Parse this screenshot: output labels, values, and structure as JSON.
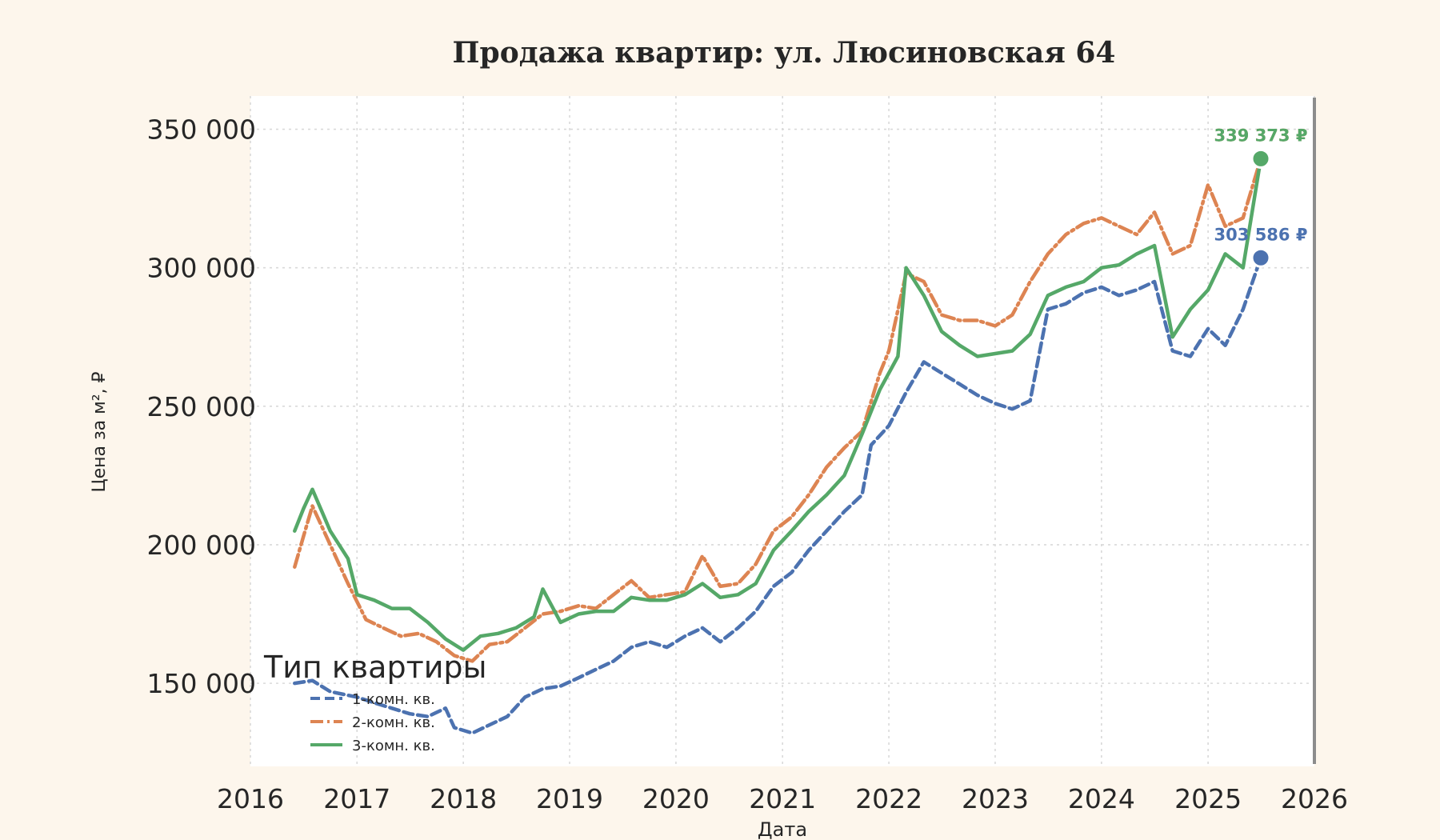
{
  "chart_data": {
    "type": "line",
    "title": "Продажа квартир: ул. Люсиновская 64",
    "xlabel": "Дата",
    "ylabel": "Цена за м², ₽",
    "xlim": [
      "2016-01-01",
      "2026-01-01"
    ],
    "ylim": [
      120000,
      362000
    ],
    "x_ticks": [
      "2016",
      "2017",
      "2018",
      "2019",
      "2020",
      "2021",
      "2022",
      "2023",
      "2024",
      "2025",
      "2026"
    ],
    "y_ticks": [
      150000,
      200000,
      250000,
      300000,
      350000
    ],
    "y_tick_labels": [
      "150 000",
      "200 000",
      "250 000",
      "300 000",
      "350 000"
    ],
    "grid": true,
    "legend": {
      "title": "Тип квартиры",
      "position": "bottom-left"
    },
    "series": [
      {
        "name": "1-комн. кв.",
        "color": "#4c72b0",
        "style": "dashed",
        "end_label": "303 586 ₽",
        "points": [
          [
            "2016-06-01",
            150000
          ],
          [
            "2016-08-01",
            151000
          ],
          [
            "2016-10-01",
            147000
          ],
          [
            "2017-01-01",
            145000
          ],
          [
            "2017-03-01",
            143000
          ],
          [
            "2017-05-01",
            141000
          ],
          [
            "2017-07-01",
            139000
          ],
          [
            "2017-09-01",
            138000
          ],
          [
            "2017-11-01",
            141000
          ],
          [
            "2017-12-01",
            134000
          ],
          [
            "2018-02-01",
            132000
          ],
          [
            "2018-04-01",
            135000
          ],
          [
            "2018-06-01",
            138000
          ],
          [
            "2018-08-01",
            145000
          ],
          [
            "2018-10-01",
            148000
          ],
          [
            "2018-12-01",
            149000
          ],
          [
            "2019-02-01",
            152000
          ],
          [
            "2019-04-01",
            155000
          ],
          [
            "2019-06-01",
            158000
          ],
          [
            "2019-08-01",
            163000
          ],
          [
            "2019-10-01",
            165000
          ],
          [
            "2019-12-01",
            163000
          ],
          [
            "2020-02-01",
            167000
          ],
          [
            "2020-04-01",
            170000
          ],
          [
            "2020-06-01",
            165000
          ],
          [
            "2020-08-01",
            170000
          ],
          [
            "2020-10-01",
            176000
          ],
          [
            "2020-12-01",
            185000
          ],
          [
            "2021-02-01",
            190000
          ],
          [
            "2021-04-01",
            198000
          ],
          [
            "2021-06-01",
            205000
          ],
          [
            "2021-08-01",
            212000
          ],
          [
            "2021-10-01",
            218000
          ],
          [
            "2021-11-01",
            236000
          ],
          [
            "2022-01-01",
            243000
          ],
          [
            "2022-03-01",
            255000
          ],
          [
            "2022-05-01",
            266000
          ],
          [
            "2022-07-01",
            262000
          ],
          [
            "2022-09-01",
            258000
          ],
          [
            "2022-11-01",
            254000
          ],
          [
            "2023-01-01",
            251000
          ],
          [
            "2023-03-01",
            249000
          ],
          [
            "2023-05-01",
            252000
          ],
          [
            "2023-07-01",
            285000
          ],
          [
            "2023-09-01",
            287000
          ],
          [
            "2023-11-01",
            291000
          ],
          [
            "2024-01-01",
            293000
          ],
          [
            "2024-03-01",
            290000
          ],
          [
            "2024-05-01",
            292000
          ],
          [
            "2024-07-01",
            295000
          ],
          [
            "2024-09-01",
            270000
          ],
          [
            "2024-11-01",
            268000
          ],
          [
            "2025-01-01",
            278000
          ],
          [
            "2025-03-01",
            272000
          ],
          [
            "2025-05-01",
            285000
          ],
          [
            "2025-07-01",
            303586
          ]
        ]
      },
      {
        "name": "2-комн. кв.",
        "color": "#dd8452",
        "style": "dashdot",
        "end_label": "339 373 ₽",
        "points": [
          [
            "2016-06-01",
            192000
          ],
          [
            "2016-07-01",
            203000
          ],
          [
            "2016-08-01",
            214000
          ],
          [
            "2016-10-01",
            200000
          ],
          [
            "2016-12-01",
            186000
          ],
          [
            "2017-02-01",
            173000
          ],
          [
            "2017-04-01",
            170000
          ],
          [
            "2017-06-01",
            167000
          ],
          [
            "2017-08-01",
            168000
          ],
          [
            "2017-10-01",
            165000
          ],
          [
            "2017-12-01",
            160000
          ],
          [
            "2018-02-01",
            158000
          ],
          [
            "2018-04-01",
            164000
          ],
          [
            "2018-06-01",
            165000
          ],
          [
            "2018-08-01",
            170000
          ],
          [
            "2018-10-01",
            175000
          ],
          [
            "2018-12-01",
            176000
          ],
          [
            "2019-02-01",
            178000
          ],
          [
            "2019-04-01",
            177000
          ],
          [
            "2019-06-01",
            182000
          ],
          [
            "2019-08-01",
            187000
          ],
          [
            "2019-10-01",
            181000
          ],
          [
            "2019-12-01",
            182000
          ],
          [
            "2020-02-01",
            183000
          ],
          [
            "2020-04-01",
            196000
          ],
          [
            "2020-06-01",
            185000
          ],
          [
            "2020-08-01",
            186000
          ],
          [
            "2020-10-01",
            193000
          ],
          [
            "2020-12-01",
            205000
          ],
          [
            "2021-02-01",
            210000
          ],
          [
            "2021-04-01",
            218000
          ],
          [
            "2021-06-01",
            228000
          ],
          [
            "2021-08-01",
            235000
          ],
          [
            "2021-10-01",
            241000
          ],
          [
            "2021-12-01",
            262000
          ],
          [
            "2022-01-01",
            270000
          ],
          [
            "2022-03-01",
            298000
          ],
          [
            "2022-05-01",
            295000
          ],
          [
            "2022-07-01",
            283000
          ],
          [
            "2022-09-01",
            281000
          ],
          [
            "2022-11-01",
            281000
          ],
          [
            "2023-01-01",
            279000
          ],
          [
            "2023-03-01",
            283000
          ],
          [
            "2023-05-01",
            295000
          ],
          [
            "2023-07-01",
            305000
          ],
          [
            "2023-09-01",
            312000
          ],
          [
            "2023-11-01",
            316000
          ],
          [
            "2024-01-01",
            318000
          ],
          [
            "2024-03-01",
            315000
          ],
          [
            "2024-05-01",
            312000
          ],
          [
            "2024-07-01",
            320000
          ],
          [
            "2024-09-01",
            305000
          ],
          [
            "2024-11-01",
            308000
          ],
          [
            "2025-01-01",
            330000
          ],
          [
            "2025-03-01",
            315000
          ],
          [
            "2025-05-01",
            318000
          ],
          [
            "2025-07-01",
            339373
          ]
        ]
      },
      {
        "name": "3-комн. кв.",
        "color": "#55a868",
        "style": "solid",
        "end_label": "339 373 ₽",
        "points": [
          [
            "2016-06-01",
            205000
          ],
          [
            "2016-07-01",
            213000
          ],
          [
            "2016-08-01",
            220000
          ],
          [
            "2016-10-01",
            205000
          ],
          [
            "2016-12-01",
            195000
          ],
          [
            "2017-01-01",
            182000
          ],
          [
            "2017-03-01",
            180000
          ],
          [
            "2017-05-01",
            177000
          ],
          [
            "2017-07-01",
            177000
          ],
          [
            "2017-09-01",
            172000
          ],
          [
            "2017-11-01",
            166000
          ],
          [
            "2018-01-01",
            162000
          ],
          [
            "2018-03-01",
            167000
          ],
          [
            "2018-05-01",
            168000
          ],
          [
            "2018-07-01",
            170000
          ],
          [
            "2018-09-01",
            174000
          ],
          [
            "2018-10-01",
            184000
          ],
          [
            "2018-12-01",
            172000
          ],
          [
            "2019-02-01",
            175000
          ],
          [
            "2019-04-01",
            176000
          ],
          [
            "2019-06-01",
            176000
          ],
          [
            "2019-08-01",
            181000
          ],
          [
            "2019-10-01",
            180000
          ],
          [
            "2019-12-01",
            180000
          ],
          [
            "2020-02-01",
            182000
          ],
          [
            "2020-04-01",
            186000
          ],
          [
            "2020-06-01",
            181000
          ],
          [
            "2020-08-01",
            182000
          ],
          [
            "2020-10-01",
            186000
          ],
          [
            "2020-12-01",
            198000
          ],
          [
            "2021-02-01",
            205000
          ],
          [
            "2021-04-01",
            212000
          ],
          [
            "2021-06-01",
            218000
          ],
          [
            "2021-08-01",
            225000
          ],
          [
            "2021-10-01",
            240000
          ],
          [
            "2021-12-01",
            256000
          ],
          [
            "2022-02-01",
            268000
          ],
          [
            "2022-03-01",
            300000
          ],
          [
            "2022-05-01",
            290000
          ],
          [
            "2022-07-01",
            277000
          ],
          [
            "2022-09-01",
            272000
          ],
          [
            "2022-11-01",
            268000
          ],
          [
            "2023-01-01",
            269000
          ],
          [
            "2023-03-01",
            270000
          ],
          [
            "2023-05-01",
            276000
          ],
          [
            "2023-07-01",
            290000
          ],
          [
            "2023-09-01",
            293000
          ],
          [
            "2023-11-01",
            295000
          ],
          [
            "2024-01-01",
            300000
          ],
          [
            "2024-03-01",
            301000
          ],
          [
            "2024-05-01",
            305000
          ],
          [
            "2024-07-01",
            308000
          ],
          [
            "2024-09-01",
            275000
          ],
          [
            "2024-11-01",
            285000
          ],
          [
            "2025-01-01",
            292000
          ],
          [
            "2025-03-01",
            305000
          ],
          [
            "2025-05-01",
            300000
          ],
          [
            "2025-07-01",
            339373
          ]
        ]
      }
    ]
  }
}
